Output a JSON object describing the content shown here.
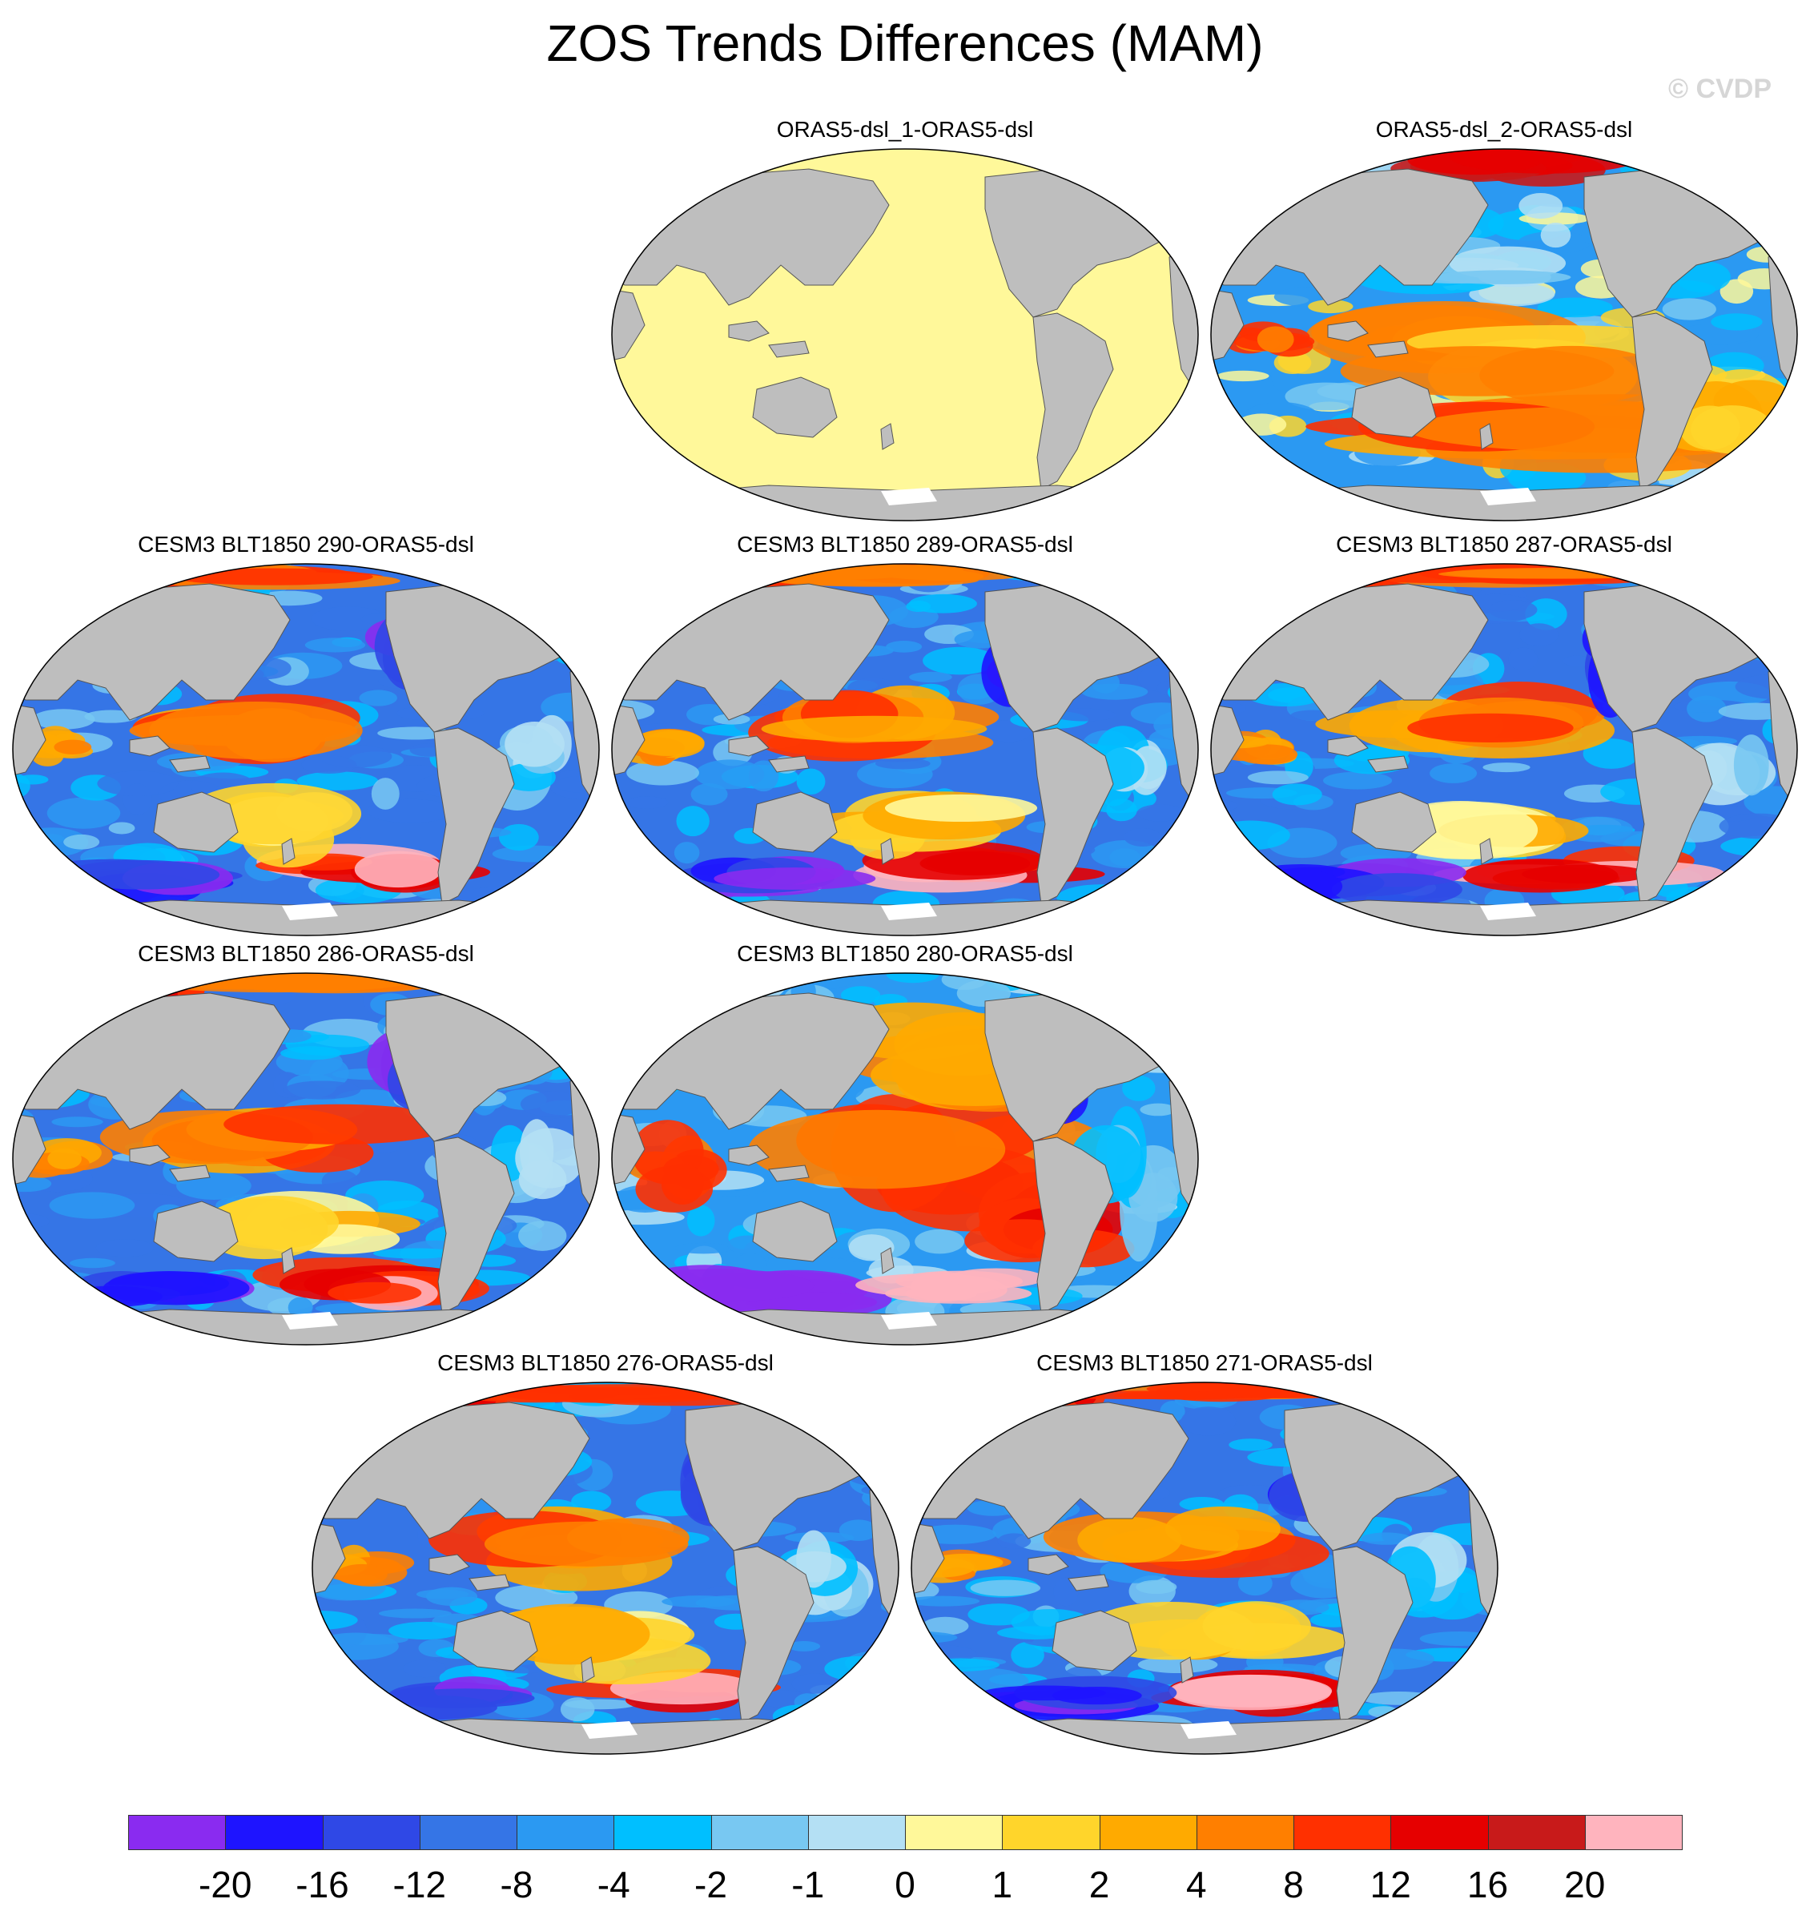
{
  "title": "ZOS Trends Differences (MAM)",
  "watermark": "© CVDP",
  "panels": [
    {
      "label": "ORAS5-dsl_1-ORAS5-dsl",
      "scheme": "zero"
    },
    {
      "label": "ORAS5-dsl_2-ORAS5-dsl",
      "scheme": "mixed"
    },
    {
      "label": "CESM3 BLT1850 290-ORAS5-dsl",
      "scheme": "model"
    },
    {
      "label": "CESM3 BLT1850 289-ORAS5-dsl",
      "scheme": "model"
    },
    {
      "label": "CESM3 BLT1850 287-ORAS5-dsl",
      "scheme": "model"
    },
    {
      "label": "CESM3 BLT1850 286-ORAS5-dsl",
      "scheme": "model"
    },
    {
      "label": "CESM3 BLT1850 280-ORAS5-dsl",
      "scheme": "warm"
    },
    {
      "label": "CESM3 BLT1850 276-ORAS5-dsl",
      "scheme": "model"
    },
    {
      "label": "CESM3 BLT1850 271-ORAS5-dsl",
      "scheme": "model"
    }
  ],
  "colorbar": {
    "labels": [
      "-20",
      "-16",
      "-12",
      "-8",
      "-4",
      "-2",
      "-1",
      "0",
      "1",
      "2",
      "4",
      "8",
      "12",
      "16",
      "20"
    ],
    "colors": [
      "#8A2BF0",
      "#1E14FF",
      "#2F48E6",
      "#3575E6",
      "#2B99F2",
      "#00BFFF",
      "#78C8F2",
      "#B4E0F4",
      "#FFF89A",
      "#FFD52B",
      "#FFAA00",
      "#FF7F00",
      "#FF3000",
      "#E60000",
      "#C81A1A",
      "#FFB4BE"
    ]
  },
  "land_color": "#BEBEBE"
}
